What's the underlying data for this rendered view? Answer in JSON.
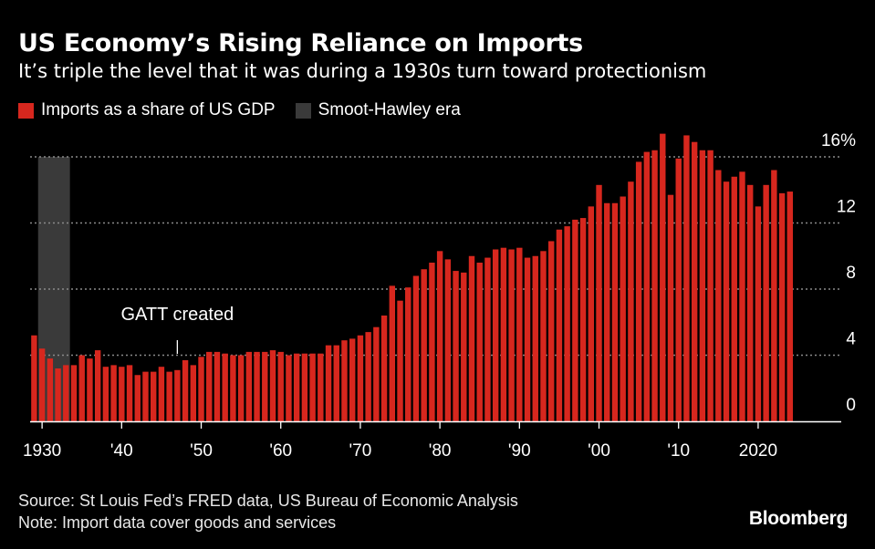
{
  "header": {
    "title": "US Economy’s Rising Reliance on Imports",
    "subtitle": "It’s triple the level that it was during a 1930s turn toward protectionism"
  },
  "legend": {
    "imports_label": "Imports as a share of US GDP",
    "smoot_label": "Smoot-Hawley era"
  },
  "colors": {
    "bar": "#d7271e",
    "smoot": "#3a3a3a",
    "grid": "#8a8a8a",
    "axis": "#ffffff",
    "background": "#000000"
  },
  "chart_data": {
    "type": "bar",
    "title": "US Economy’s Rising Reliance on Imports",
    "ylabel": "Imports as a share of US GDP",
    "ylim": [
      0,
      16
    ],
    "y_ticks": [
      {
        "value": 0,
        "label": "0"
      },
      {
        "value": 4,
        "label": "4"
      },
      {
        "value": 8,
        "label": "8"
      },
      {
        "value": 12,
        "label": "12"
      },
      {
        "value": 16,
        "label": "16%"
      }
    ],
    "x_ticks": [
      {
        "year": 1930,
        "label": "1930"
      },
      {
        "year": 1940,
        "label": "'40"
      },
      {
        "year": 1950,
        "label": "'50"
      },
      {
        "year": 1960,
        "label": "'60"
      },
      {
        "year": 1970,
        "label": "'70"
      },
      {
        "year": 1980,
        "label": "'80"
      },
      {
        "year": 1990,
        "label": "'90"
      },
      {
        "year": 2000,
        "label": "'00"
      },
      {
        "year": 2010,
        "label": "'10"
      },
      {
        "year": 2020,
        "label": "2020"
      }
    ],
    "shaded_region": {
      "label": "Smoot-Hawley era",
      "start_year": 1930,
      "end_year": 1933
    },
    "annotation": {
      "text": "GATT created",
      "year": 1947
    },
    "start_year": 1929,
    "values": [
      5.2,
      4.4,
      3.8,
      3.2,
      3.4,
      3.4,
      4.0,
      3.8,
      4.3,
      3.3,
      3.4,
      3.3,
      3.4,
      2.8,
      3.0,
      3.0,
      3.3,
      3.0,
      3.1,
      3.7,
      3.4,
      3.9,
      4.2,
      4.2,
      4.1,
      4.0,
      4.0,
      4.2,
      4.2,
      4.2,
      4.3,
      4.2,
      4.0,
      4.1,
      4.1,
      4.1,
      4.1,
      4.6,
      4.6,
      4.9,
      5.0,
      5.2,
      5.4,
      5.7,
      6.4,
      8.2,
      7.3,
      8.1,
      8.8,
      9.2,
      9.6,
      10.3,
      9.8,
      9.1,
      9.0,
      10.0,
      9.6,
      9.9,
      10.4,
      10.5,
      10.4,
      10.5,
      9.9,
      10.0,
      10.3,
      10.9,
      11.6,
      11.8,
      12.2,
      12.3,
      13.0,
      14.3,
      13.2,
      13.2,
      13.6,
      14.5,
      15.7,
      16.3,
      16.4,
      17.4,
      13.7,
      15.9,
      17.3,
      16.9,
      16.4,
      16.4,
      15.2,
      14.5,
      14.8,
      15.1,
      14.3,
      13.0,
      14.3,
      15.2,
      13.8,
      13.9
    ]
  },
  "footer": {
    "source": "Source: St Louis Fed’s FRED data, US Bureau of Economic Analysis",
    "note": "Note: Import data cover goods and services",
    "brand": "Bloomberg"
  }
}
